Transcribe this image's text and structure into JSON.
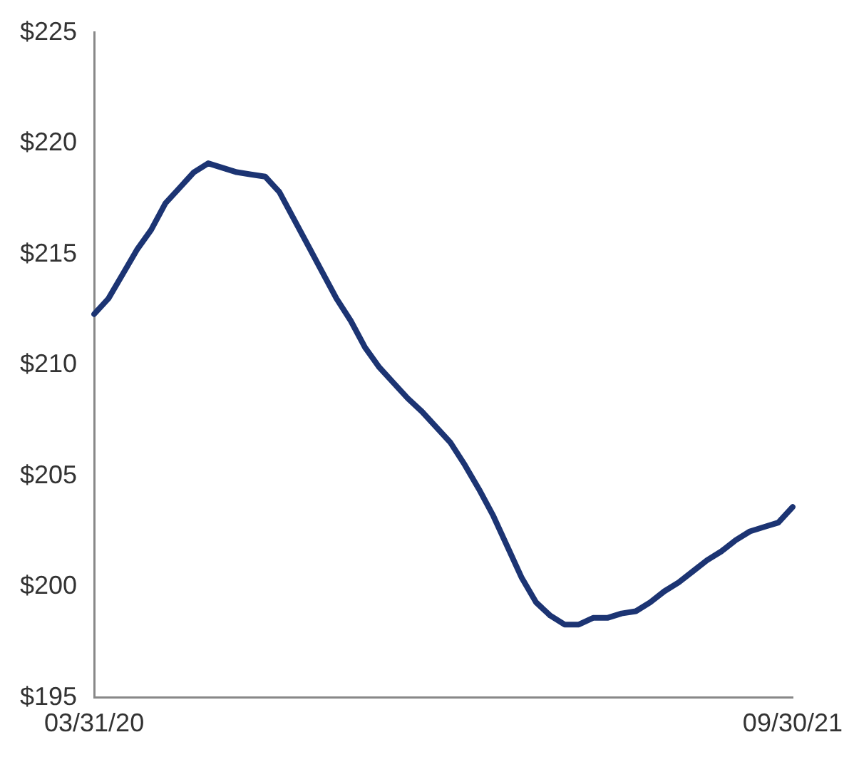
{
  "chart_data": {
    "type": "line",
    "categories": [
      "03/31/20",
      null,
      null,
      null,
      null,
      null,
      null,
      null,
      null,
      null,
      null,
      null,
      null,
      null,
      null,
      null,
      null,
      null,
      null,
      null,
      null,
      null,
      null,
      null,
      null,
      null,
      null,
      null,
      null,
      null,
      null,
      null,
      null,
      null,
      null,
      null,
      null,
      null,
      null,
      null,
      null,
      null,
      null,
      null,
      null,
      null,
      null,
      null,
      null,
      "09/30/21"
    ],
    "series": [
      {
        "color": "#1c3473",
        "values": [
          212.3,
          213.0,
          214.1,
          215.2,
          216.1,
          217.3,
          218.0,
          218.7,
          219.1,
          218.9,
          218.7,
          218.6,
          218.5,
          217.8,
          216.6,
          215.4,
          214.2,
          213.0,
          212.0,
          210.8,
          209.9,
          209.2,
          208.5,
          207.9,
          207.2,
          206.5,
          205.5,
          204.4,
          203.2,
          201.8,
          200.4,
          199.3,
          198.7,
          198.3,
          198.3,
          198.6,
          198.6,
          198.8,
          198.9,
          199.3,
          199.8,
          200.2,
          200.7,
          201.2,
          201.6,
          202.1,
          202.5,
          202.7,
          202.9,
          203.6
        ]
      }
    ],
    "ylim": [
      195,
      225
    ],
    "yticks": [
      {
        "value": 195,
        "label": "$195"
      },
      {
        "value": 200,
        "label": "$200"
      },
      {
        "value": 205,
        "label": "$205"
      },
      {
        "value": 210,
        "label": "$210"
      },
      {
        "value": 215,
        "label": "$215"
      },
      {
        "value": 220,
        "label": "$220"
      },
      {
        "value": 225,
        "label": "$225"
      }
    ],
    "grid": false,
    "legend": false,
    "marker": "none",
    "line_style": "solid"
  }
}
